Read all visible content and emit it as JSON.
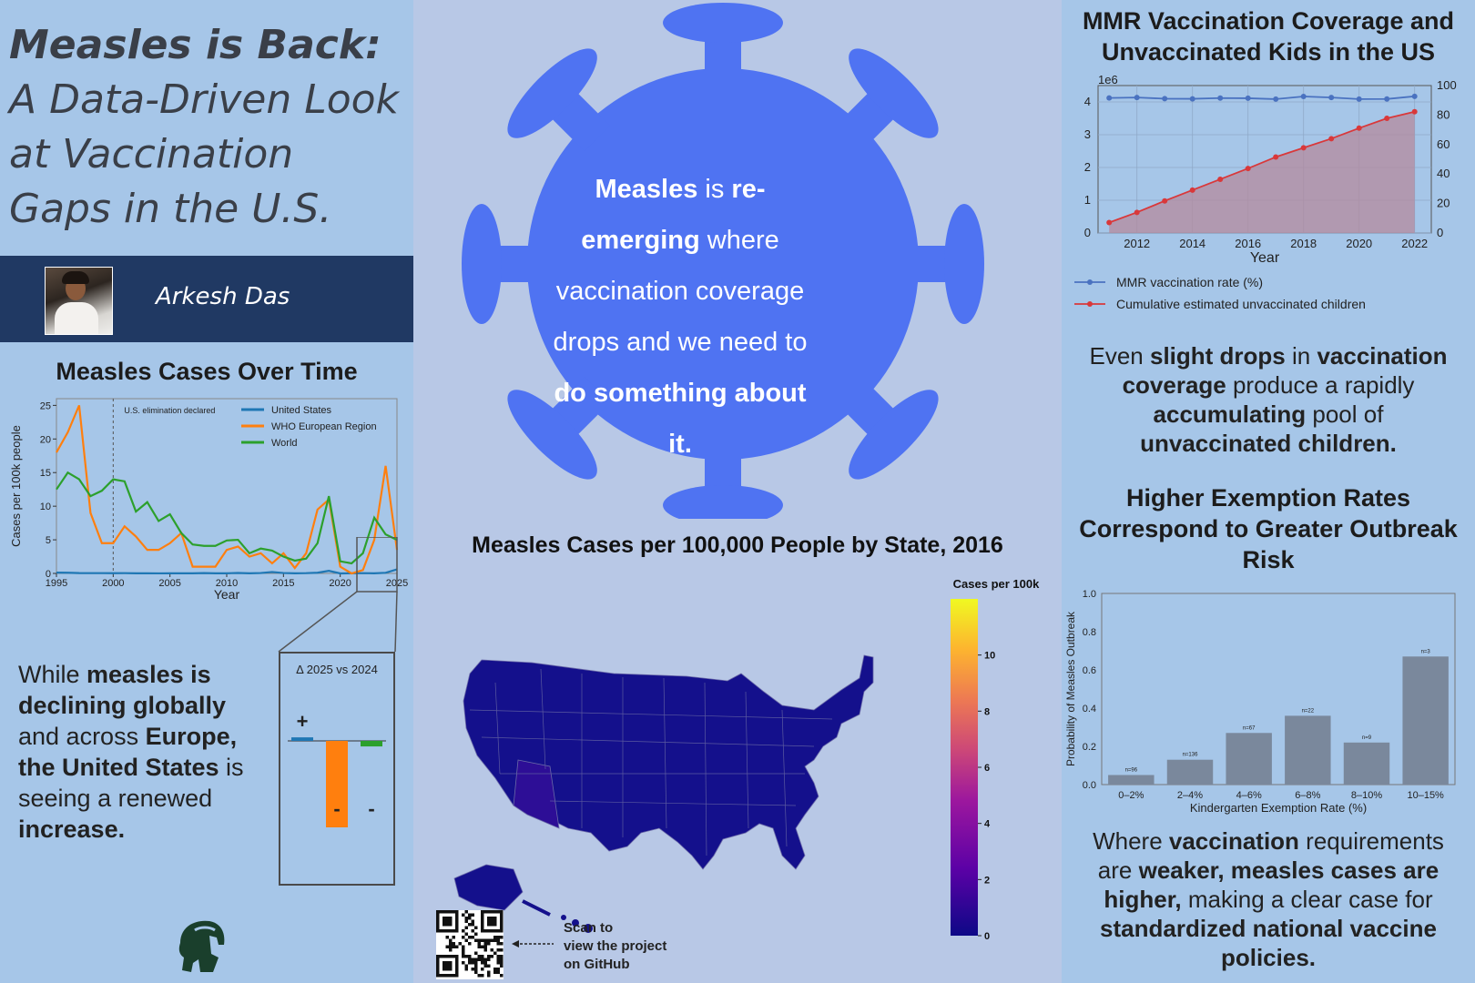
{
  "left": {
    "title_lines": [
      "Measles is Back:",
      "A Data-Driven Look",
      "at Vaccination",
      "Gaps in the U.S."
    ],
    "author": "Arkesh Das",
    "cases_title": "Measles Cases Over Time",
    "text_parts": [
      {
        "t": "While ",
        "b": false
      },
      {
        "t": "measles is declining globally",
        "b": true
      },
      {
        "t": " and across ",
        "b": false
      },
      {
        "t": "Europe, the United States",
        "b": true
      },
      {
        "t": " is seeing a renewed ",
        "b": false
      },
      {
        "t": "increase.",
        "b": true
      }
    ],
    "delta": {
      "title": "Δ 2025 vs 2024",
      "plus": "+",
      "minus": "-"
    },
    "logo_icon": "spartan-helmet-icon"
  },
  "middle": {
    "virus_icon": "virus-icon",
    "message_parts": [
      {
        "t": "Measles",
        "b": true
      },
      {
        "t": " is ",
        "b": false
      },
      {
        "t": "re-emerging",
        "b": true
      },
      {
        "t": " where vaccination coverage drops and we need to ",
        "b": false
      },
      {
        "t": "do something about it.",
        "b": true
      }
    ],
    "map_title": "Measles Cases per 100,000 People by State, 2016",
    "colorbar_title": "Cases per 100k",
    "colorbar_ticks": [
      "10",
      "8",
      "6",
      "4",
      "2",
      "0"
    ],
    "scan_text": [
      "Scan to",
      "view the project",
      "on GitHub"
    ],
    "qr_icon": "qr-code-icon"
  },
  "right": {
    "mmr_title": "MMR Vaccination Coverage and Unvaccinated Kids in the US",
    "text1_parts": [
      {
        "t": "Even ",
        "b": false
      },
      {
        "t": "slight drops",
        "b": true
      },
      {
        "t": " in ",
        "b": false
      },
      {
        "t": "vaccination coverage",
        "b": true
      },
      {
        "t": " produce a rapidly ",
        "b": false
      },
      {
        "t": "accumulating",
        "b": true
      },
      {
        "t": " pool of ",
        "b": false
      },
      {
        "t": "unvaccinated children.",
        "b": true
      }
    ],
    "exempt_title": "Higher Exemption Rates Correspond to Greater Outbreak Risk",
    "text2_parts": [
      {
        "t": "Where ",
        "b": false
      },
      {
        "t": "vaccination",
        "b": true
      },
      {
        "t": " requirements are ",
        "b": false
      },
      {
        "t": "weaker, measles cases are higher,",
        "b": true
      },
      {
        "t": " making a clear case for ",
        "b": false
      },
      {
        "t": "standardized national vaccine policies.",
        "b": true
      }
    ]
  },
  "chart_data": [
    {
      "id": "cases",
      "type": "line",
      "xlabel": "Year",
      "ylabel": "Cases per 100k people",
      "xlim": [
        1995,
        2025
      ],
      "ylim": [
        0,
        26
      ],
      "xticks": [
        1995,
        2000,
        2005,
        2010,
        2015,
        2020,
        2025
      ],
      "yticks": [
        0,
        5,
        10,
        15,
        20,
        25
      ],
      "annotation": {
        "x": 2000,
        "text": "U.S. elimination declared"
      },
      "legend_position": "top-right",
      "series": [
        {
          "name": "United States",
          "color": "#1f77b4",
          "x": [
            1995,
            1996,
            1997,
            1998,
            1999,
            2000,
            2001,
            2002,
            2003,
            2004,
            2005,
            2006,
            2007,
            2008,
            2009,
            2010,
            2011,
            2012,
            2013,
            2014,
            2015,
            2016,
            2017,
            2018,
            2019,
            2020,
            2021,
            2022,
            2023,
            2024,
            2025
          ],
          "y": [
            0.12,
            0.1,
            0.05,
            0.04,
            0.04,
            0.03,
            0.04,
            0.02,
            0.02,
            0.01,
            0.02,
            0.02,
            0.02,
            0.05,
            0.02,
            0.02,
            0.07,
            0.02,
            0.06,
            0.21,
            0.06,
            0.02,
            0.04,
            0.1,
            0.39,
            0.004,
            0.02,
            0.04,
            0.02,
            0.09,
            0.6
          ]
        },
        {
          "name": "WHO European Region",
          "color": "#ff7f0e",
          "x": [
            1995,
            1996,
            1997,
            1998,
            1999,
            2000,
            2001,
            2002,
            2003,
            2004,
            2005,
            2006,
            2007,
            2008,
            2009,
            2010,
            2011,
            2012,
            2013,
            2014,
            2015,
            2016,
            2017,
            2018,
            2019,
            2020,
            2021,
            2022,
            2023,
            2024,
            2025
          ],
          "y": [
            18,
            21,
            25,
            9,
            4.5,
            4.5,
            7,
            5.5,
            3.5,
            3.5,
            4.5,
            6,
            1,
            1,
            1,
            3.5,
            4,
            2.5,
            3,
            1.5,
            3,
            0.8,
            3,
            9.5,
            11,
            1,
            0,
            0.5,
            5,
            16,
            3.5
          ]
        },
        {
          "name": "World",
          "color": "#2ca02c",
          "x": [
            1995,
            1996,
            1997,
            1998,
            1999,
            2000,
            2001,
            2002,
            2003,
            2004,
            2005,
            2006,
            2007,
            2008,
            2009,
            2010,
            2011,
            2012,
            2013,
            2014,
            2015,
            2016,
            2017,
            2018,
            2019,
            2020,
            2021,
            2022,
            2023,
            2024,
            2025
          ],
          "y": [
            12.5,
            15,
            14,
            11.5,
            12.3,
            14,
            13.7,
            9.2,
            10.6,
            7.8,
            8.8,
            6,
            4.3,
            4.1,
            4.1,
            4.9,
            5,
            3,
            3.7,
            3.4,
            2.5,
            1.9,
            2.2,
            4.5,
            11.5,
            1.8,
            1.5,
            3,
            8.3,
            5.8,
            5
          ]
        }
      ]
    },
    {
      "id": "delta",
      "type": "bar",
      "title": "Δ 2025 vs 2024",
      "categories": [
        "United States",
        "WHO European Region",
        "World"
      ],
      "values": [
        0.51,
        -12.5,
        -0.8
      ],
      "colors": [
        "#1f77b4",
        "#ff7f0e",
        "#2ca02c"
      ]
    },
    {
      "id": "mmr",
      "type": "line",
      "xlabel": "Year",
      "xlim": [
        2010.6,
        2022.6
      ],
      "xticks": [
        2012,
        2014,
        2016,
        2018,
        2020,
        2022
      ],
      "left_ylim": [
        0,
        4.5
      ],
      "left_yticks": [
        0,
        1,
        2,
        3,
        4
      ],
      "left_scale_label": "1e6",
      "right_ylim": [
        0,
        100
      ],
      "right_yticks": [
        0,
        20,
        40,
        60,
        80,
        100
      ],
      "legend_position": "bottom",
      "series": [
        {
          "name": "MMR vaccination rate (%)",
          "color": "#4a72c0",
          "axis": "right",
          "x": [
            2011,
            2012,
            2013,
            2014,
            2015,
            2016,
            2017,
            2018,
            2019,
            2020,
            2021,
            2022
          ],
          "y": [
            91.6,
            91.9,
            91.1,
            91.0,
            91.5,
            91.4,
            90.8,
            92.6,
            91.9,
            90.8,
            90.9,
            92.7
          ]
        },
        {
          "name": "Cumulative estimated unvaccinated children",
          "color": "#d9383a",
          "axis": "left",
          "fill": true,
          "x": [
            2011,
            2012,
            2013,
            2014,
            2015,
            2016,
            2017,
            2018,
            2019,
            2020,
            2021,
            2022
          ],
          "y": [
            0.32,
            0.63,
            0.98,
            1.31,
            1.64,
            1.97,
            2.32,
            2.6,
            2.88,
            3.2,
            3.5,
            3.7
          ]
        }
      ]
    },
    {
      "id": "exemption",
      "type": "bar",
      "xlabel": "Kindergarten Exemption Rate (%)",
      "ylabel": "Probability of Measles Outbreak",
      "ylim": [
        0,
        1.0
      ],
      "yticks": [
        0.0,
        0.2,
        0.4,
        0.6,
        0.8,
        1.0
      ],
      "categories": [
        "0–2%",
        "2–4%",
        "4–6%",
        "6–8%",
        "8–10%",
        "10–15%"
      ],
      "values": [
        0.05,
        0.13,
        0.27,
        0.36,
        0.22,
        0.67
      ],
      "labels": [
        "n=96",
        "n=136",
        "n=67",
        "n=22",
        "n=9",
        "n=3"
      ],
      "color": "#7a889c"
    },
    {
      "id": "map",
      "type": "heatmap",
      "title": "Measles Cases per 100,000 People by State, 2016",
      "colorbar_title": "Cases per 100k",
      "colorbar_range": [
        0,
        12
      ],
      "colorbar_ticks": [
        0,
        2,
        4,
        6,
        8,
        10
      ],
      "states": {
        "AZ": 0.8,
        "other": 0.0
      }
    }
  ]
}
